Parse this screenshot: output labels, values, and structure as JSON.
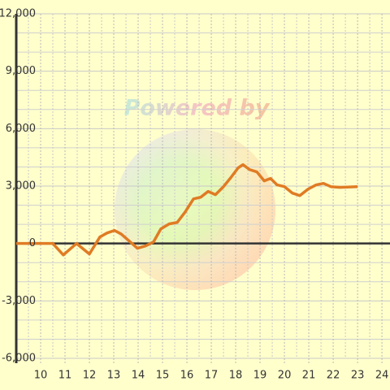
{
  "chart_data": {
    "type": "line",
    "watermark": "Powered by",
    "x": [
      9.0,
      10.5,
      10.93,
      11.47,
      12.0,
      12.43,
      12.73,
      13.03,
      13.3,
      13.63,
      13.97,
      14.3,
      14.63,
      14.93,
      15.27,
      15.6,
      15.93,
      16.27,
      16.57,
      16.87,
      17.17,
      17.5,
      17.8,
      18.1,
      18.3,
      18.57,
      18.87,
      19.17,
      19.43,
      19.7,
      20.0,
      20.33,
      20.63,
      20.97,
      21.3,
      21.6,
      21.9,
      22.27,
      23.0
    ],
    "series": [
      {
        "color": "#e07b24",
        "values": [
          0,
          0,
          -600,
          0,
          -550,
          340,
          550,
          680,
          500,
          130,
          -250,
          -130,
          80,
          760,
          1020,
          1100,
          1650,
          2330,
          2420,
          2720,
          2550,
          2970,
          3440,
          3950,
          4120,
          3860,
          3740,
          3270,
          3400,
          3060,
          2970,
          2630,
          2500,
          2840,
          3060,
          3140,
          2970,
          2930,
          2970
        ]
      }
    ],
    "xlim": [
      9,
      24.33
    ],
    "xticks": [
      10,
      11,
      12,
      13,
      14,
      15,
      16,
      17,
      18,
      19,
      20,
      21,
      22,
      23,
      24
    ],
    "ylim": [
      -6000,
      12000
    ],
    "yticks": [
      {
        "value": -6000,
        "label": "-6,000"
      },
      {
        "value": -3000,
        "label": "-3,000"
      },
      0,
      {
        "value": 3000,
        "label": "3,000"
      },
      {
        "value": 6000,
        "label": "6,000"
      },
      {
        "value": 9000,
        "label": "9,000"
      },
      {
        "value": 12000,
        "label": "12,000"
      }
    ],
    "grid": true
  }
}
